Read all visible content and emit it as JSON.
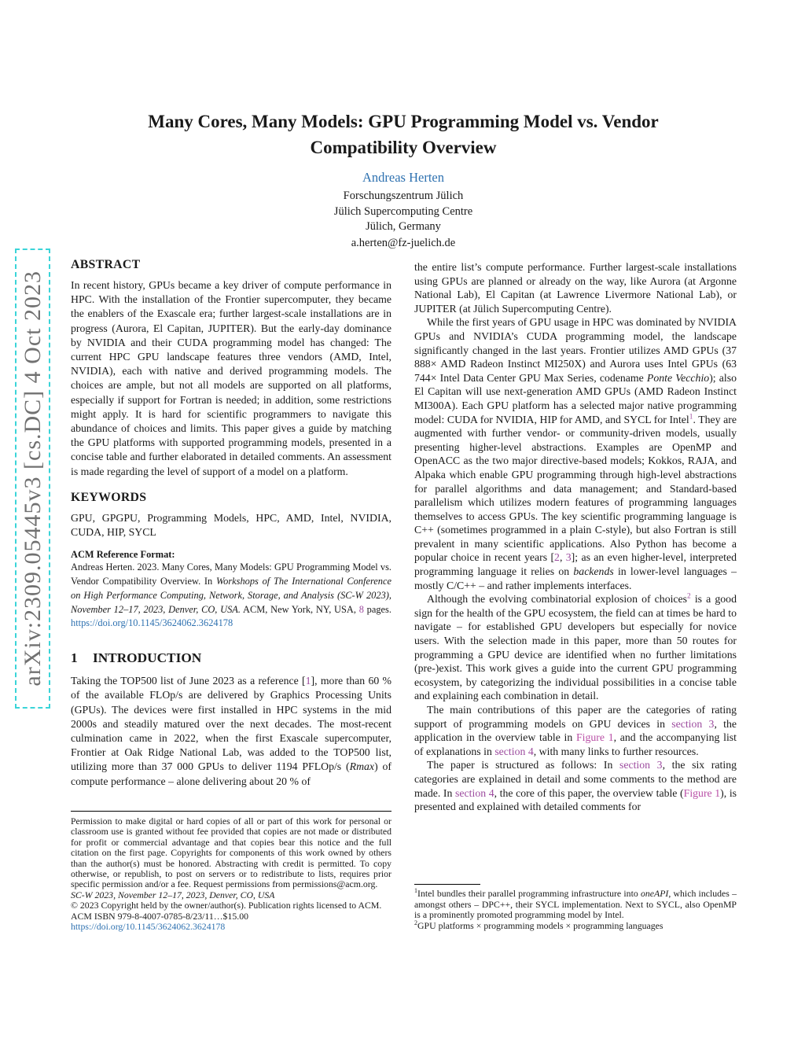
{
  "colors": {
    "blue": "#2E71B0",
    "purple": "#9C4B9E",
    "magenta": "#B94FA6",
    "wm-gray": "#717171",
    "wm-cyan": "#3AD4D8"
  },
  "watermark": {
    "text": "arXiv:2309.05445v3  [cs.DC]  4 Oct 2023"
  },
  "header": {
    "title_line1": "Many Cores, Many Models: GPU Programming Model vs. Vendor",
    "title_line2": "Compatibility Overview",
    "author": "Andreas Herten",
    "affiliations": {
      "line1": "Forschungszentrum Jülich",
      "line2": "Jülich Supercomputing Centre",
      "line3": "Jülich, Germany"
    },
    "email": "a.herten@fz-juelich.de"
  },
  "left": {
    "abstract_heading": "ABSTRACT",
    "abstract": "In recent history, GPUs became a key driver of compute performance in HPC. With the installation of the Frontier supercomputer, they became the enablers of the Exascale era; further largest-scale installations are in progress (Aurora, El Capitan, JUPITER). But the early-day dominance by NVIDIA and their CUDA programming model has changed: The current HPC GPU landscape features three vendors (AMD, Intel, NVIDIA), each with native and derived programming models. The choices are ample, but not all models are supported on all platforms, especially if support for Fortran is needed; in addition, some restrictions might apply. It is hard for scientific programmers to navigate this abundance of choices and limits. This paper gives a guide by matching the GPU platforms with supported programming models, presented in a concise table and further elaborated in detailed comments. An assessment is made regarding the level of support of a model on a platform.",
    "keywords_heading": "KEYWORDS",
    "keywords": "GPU, GPGPU, Programming Models, HPC, AMD, Intel, NVIDIA, CUDA, HIP, SYCL",
    "acm_format_heading": "ACM Reference Format:",
    "acm_format": [
      {
        "t": "Andreas Herten. 2023. Many Cores, Many Models: GPU Programming Model vs. Vendor Compatibility Overview. In "
      },
      {
        "t": "Workshops of The International Conference on High Performance Computing, Network, Storage, and Analysis (SC-W 2023), November 12–17, 2023, Denver, CO, USA.",
        "s": "i"
      },
      {
        "t": " ACM, New York, NY, USA, "
      },
      {
        "t": "8",
        "s": "purple",
        "n": "page-count-ref"
      },
      {
        "t": " pages. "
      },
      {
        "t": "https://doi.org/10.1145/3624062.3624178",
        "s": "blue",
        "n": "doi-link"
      }
    ],
    "section1_number": "1",
    "section1_title": "INTRODUCTION",
    "intro_paragraph": [
      {
        "t": "Taking the TOP500 list of June 2023 as a reference ["
      },
      {
        "t": "1",
        "s": "purple",
        "n": "citation-ref"
      },
      {
        "t": "], more than 60 % of the available FLOp/s are delivered by Graphics Processing Units (GPUs). The devices were first installed in HPC systems in the mid 2000s and steadily matured over the next decades. The most-recent culmination came in 2022, when the first Exascale supercomputer, Frontier at Oak Ridge National Lab, was added to the TOP500 list, utilizing more than 37 000 GPUs to deliver 1194 PFLOp/s ("
      },
      {
        "t": "Rmax",
        "s": "i"
      },
      {
        "t": ") of compute performance – alone delivering about 20 % of"
      }
    ],
    "copyright_block": {
      "permission": "Permission to make digital or hard copies of all or part of this work for personal or classroom use is granted without fee provided that copies are not made or distributed for profit or commercial advantage and that copies bear this notice and the full citation on the first page. Copyrights for components of this work owned by others than the author(s) must be honored. Abstracting with credit is permitted. To copy otherwise, or republish, to post on servers or to redistribute to lists, requires prior specific permission and/or a fee. Request permissions from permissions@acm.org.",
      "conference": "SC-W 2023, November 12–17, 2023, Denver, CO, USA",
      "copyright": "© 2023 Copyright held by the owner/author(s). Publication rights licensed to ACM.",
      "isbn": "ACM ISBN 979-8-4007-0785-8/23/11…$15.00",
      "doi": "https://doi.org/10.1145/3624062.3624178"
    }
  },
  "right": {
    "paragraphs": [
      [
        {
          "t": "the entire list’s compute performance. Further largest-scale installations using GPUs are planned or already on the way, like Aurora (at Argonne National Lab), El Capitan (at Lawrence Livermore National Lab), or JUPITER (at Jülich Supercomputing Centre)."
        }
      ],
      [
        {
          "t": "While the first years of GPU usage in HPC was dominated by NVIDIA GPUs and NVIDIA’s CUDA programming model, the landscape significantly changed in the last years. Frontier utilizes AMD GPUs (37 888× AMD Radeon Instinct MI250X) and Aurora uses Intel GPUs (63 744× Intel Data Center GPU Max Series, codename "
        },
        {
          "t": "Ponte Vecchio",
          "s": "i"
        },
        {
          "t": "); also El Capitan will use next-generation AMD GPUs (AMD Radeon Instinct MI300A). Each GPU platform has a selected major native programming model: CUDA for NVIDIA, HIP for AMD, and SYCL for Intel"
        },
        {
          "t": "1",
          "s": "supp",
          "n": "footnote-ref-1"
        },
        {
          "t": ". They are augmented with further vendor- or community-driven models, usually presenting higher-level abstractions. Examples are OpenMP and OpenACC as the two major directive-based models; Kokkos, RAJA, and Alpaka which enable GPU programming through high-level abstractions for parallel algorithms and data management; and Standard-based parallelism which utilizes modern features of programming languages themselves to access GPUs. The key scientific programming language is C++ (sometimes programmed in a plain C-style), but also Fortran is still prevalent in many scientific applications. Also Python has become a popular choice in recent years ["
        },
        {
          "t": "2",
          "s": "purple",
          "n": "citation-ref"
        },
        {
          "t": ", "
        },
        {
          "t": "3",
          "s": "purple",
          "n": "citation-ref"
        },
        {
          "t": "]; as an even higher-level, interpreted programming language it relies on "
        },
        {
          "t": "backends",
          "s": "i"
        },
        {
          "t": " in lower-level languages – mostly C/C++ – and rather implements interfaces."
        }
      ],
      [
        {
          "t": "Although the evolving combinatorial explosion of choices"
        },
        {
          "t": "2",
          "s": "supp",
          "n": "footnote-ref-2"
        },
        {
          "t": " is a good sign for the health of the GPU ecosystem, the field can at times be hard to navigate – for established GPU developers but especially for novice users. With the selection made in this paper, more than 50 routes for programming a GPU device are identified when no further limitations (pre-)exist. This work gives a guide into the current GPU programming ecosystem, by categorizing the individual possibilities in a concise table and explaining each combination in detail."
        }
      ],
      [
        {
          "t": "The main contributions of this paper are the categories of rating support of programming models on GPU devices in "
        },
        {
          "t": "section 3",
          "s": "purple",
          "n": "section-ref"
        },
        {
          "t": ", the application in the overview table in "
        },
        {
          "t": "Figure 1",
          "s": "magenta",
          "n": "figure-ref"
        },
        {
          "t": ", and the accompanying list of explanations in "
        },
        {
          "t": "section 4",
          "s": "purple",
          "n": "section-ref"
        },
        {
          "t": ", with many links to further resources."
        }
      ],
      [
        {
          "t": "The paper is structured as follows: In "
        },
        {
          "t": "section 3",
          "s": "purple",
          "n": "section-ref"
        },
        {
          "t": ", the six rating categories are explained in detail and some comments to the method are made. In "
        },
        {
          "t": "section 4",
          "s": "purple",
          "n": "section-ref"
        },
        {
          "t": ", the core of this paper, the overview table ("
        },
        {
          "t": "Figure 1",
          "s": "magenta",
          "n": "figure-ref"
        },
        {
          "t": "), is presented and explained with detailed comments for"
        }
      ]
    ],
    "footnotes": [
      [
        {
          "t": "1",
          "s": "sup",
          "n": "footnote-marker"
        },
        {
          "t": "Intel bundles their parallel programming infrastructure into "
        },
        {
          "t": "oneAPI",
          "s": "i"
        },
        {
          "t": ", which includes – amongst others – DPC++, their SYCL implementation. Next to SYCL, also OpenMP is a prominently promoted programming model by Intel."
        }
      ],
      [
        {
          "t": "2",
          "s": "sup",
          "n": "footnote-marker"
        },
        {
          "t": "GPU platforms × programming models × programming languages"
        }
      ]
    ]
  }
}
